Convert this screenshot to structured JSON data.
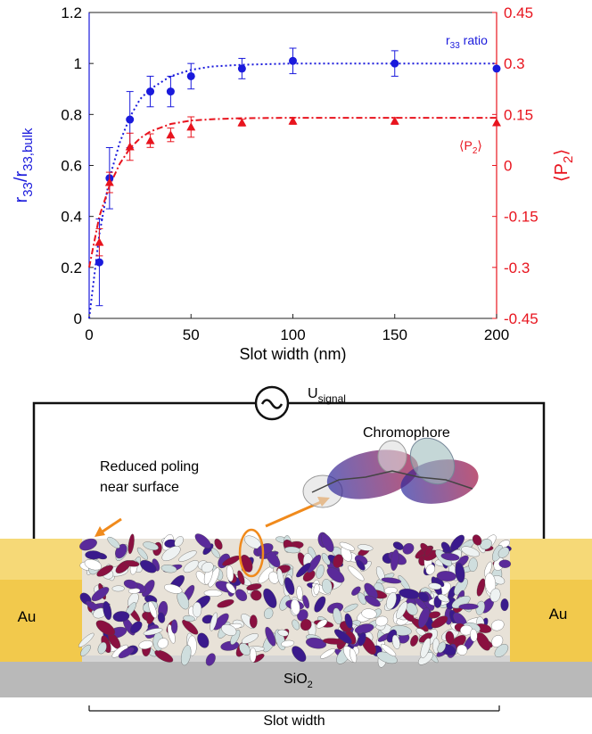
{
  "chart_data": {
    "type": "scatter",
    "xlabel": "Slot width (nm)",
    "ylabel": [
      {
        "text": "r"
      },
      {
        "sub": "33"
      },
      {
        "text": "/r"
      },
      {
        "sub": "33,bulk"
      }
    ],
    "y2label": [
      {
        "text": "⟨P"
      },
      {
        "sub": "2"
      },
      {
        "text": "⟩"
      }
    ],
    "xlim": [
      0,
      200
    ],
    "xticks": [
      0,
      50,
      100,
      150,
      200
    ],
    "ylim": [
      0,
      1.2
    ],
    "yticks": [
      0,
      0.2,
      0.4,
      0.6,
      0.8,
      1,
      1.2
    ],
    "y2lim": [
      -0.45,
      0.45
    ],
    "y2ticks": [
      -0.45,
      -0.3,
      -0.15,
      0,
      0.15,
      0.3,
      0.45
    ],
    "series": [
      {
        "name": [
          {
            "text": "r"
          },
          {
            "sub": "33"
          },
          {
            "text": " ratio"
          }
        ],
        "color": "#1a1adc",
        "marker": "circle",
        "axis": "y",
        "x": [
          5,
          10,
          20,
          30,
          40,
          50,
          75,
          100,
          150,
          200
        ],
        "values": [
          0.22,
          0.55,
          0.78,
          0.89,
          0.89,
          0.95,
          0.98,
          1.01,
          1.0,
          0.98
        ],
        "errors": [
          0.17,
          0.12,
          0.11,
          0.06,
          0.06,
          0.05,
          0.04,
          0.05,
          0.05,
          0
        ]
      },
      {
        "name": [
          {
            "text": "⟨P"
          },
          {
            "sub": "2"
          },
          {
            "text": "⟩"
          }
        ],
        "color": "#e8141e",
        "marker": "triangle",
        "axis": "y2",
        "x": [
          5,
          10,
          20,
          30,
          40,
          50,
          75,
          100,
          150,
          200
        ],
        "values": [
          -0.226,
          -0.05,
          0.055,
          0.073,
          0.09,
          0.113,
          0.126,
          0.131,
          0.131,
          0.126
        ],
        "errors": [
          0.04,
          0.03,
          0.04,
          0.02,
          0.02,
          0.03,
          0.01,
          0.01,
          0.01,
          0
        ]
      }
    ],
    "fits": [
      {
        "color": "#1a1adc",
        "axis": "y",
        "dash": "2 3",
        "x": [
          0,
          5,
          10,
          15,
          20,
          25,
          30,
          40,
          50,
          60,
          75,
          100,
          150,
          200
        ],
        "values": [
          0,
          0.33,
          0.55,
          0.69,
          0.79,
          0.86,
          0.9,
          0.95,
          0.975,
          0.988,
          0.995,
          1.0,
          1.0,
          1.0
        ]
      },
      {
        "color": "#e8141e",
        "axis": "y2",
        "dash": "7 3 2 3",
        "x": [
          0,
          5,
          10,
          15,
          20,
          25,
          30,
          40,
          50,
          60,
          75,
          100,
          150,
          200
        ],
        "values": [
          -0.3,
          -0.15,
          -0.06,
          0.005,
          0.05,
          0.08,
          0.1,
          0.122,
          0.132,
          0.136,
          0.139,
          0.14,
          0.14,
          0.14
        ]
      }
    ]
  },
  "diagram": {
    "signal": [
      {
        "text": "U"
      },
      {
        "sub": "signal"
      }
    ],
    "chromophore": "Chromophore",
    "reduced_poling": [
      "Reduced poling",
      "near surface"
    ],
    "left_electrode": "Au",
    "right_electrode": "Au",
    "substrate": [
      {
        "text": "SiO"
      },
      {
        "sub": "2"
      }
    ],
    "slot_width": "Slot width"
  }
}
